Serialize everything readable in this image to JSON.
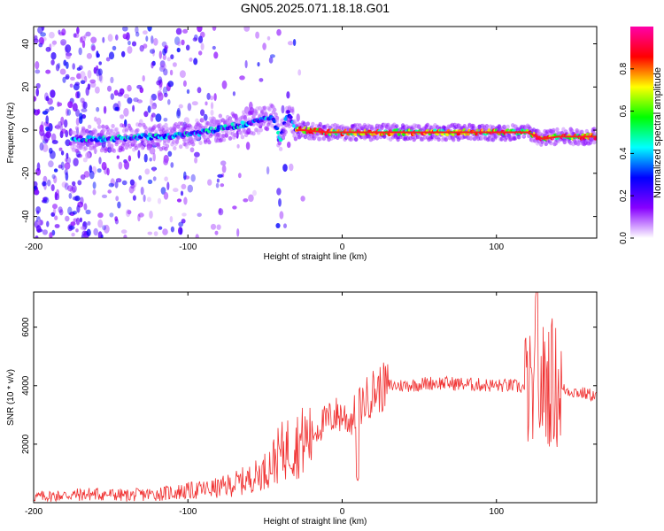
{
  "title": "GN05.2025.071.18.18.G01",
  "colors": {
    "trace": "#f03030",
    "frame": "#000000",
    "ridge": "#ff1f1f"
  },
  "chart_data": [
    {
      "type": "heatmap",
      "title": "GN05.2025.071.18.18.G01",
      "xlabel": "Height of straight line (km)",
      "ylabel": "Frequency (Hz)",
      "xlim": [
        -200,
        165
      ],
      "ylim": [
        -50,
        48
      ],
      "xticks": [
        -200,
        -100,
        0,
        100
      ],
      "yticks": [
        -40,
        -20,
        0,
        20,
        40
      ],
      "xtick_labels": [
        "-200",
        "-100",
        "0",
        "100"
      ],
      "ytick_labels": [
        "-40",
        "-20",
        "0",
        "20",
        "40"
      ],
      "colorbar": {
        "label": "Normalized spectral amplitude",
        "range": [
          0,
          1
        ],
        "ticks": [
          0.0,
          0.2,
          0.4,
          0.6,
          0.8
        ],
        "tick_labels": [
          "0.0",
          "0.2",
          "0.4",
          "0.6",
          "0.8"
        ],
        "colormap": [
          "#ffffff",
          "#8800ff",
          "#0000ff",
          "#00ffff",
          "#00ff00",
          "#ffff00",
          "#ff0000",
          "#ff00aa"
        ]
      },
      "ridge": {
        "x": [
          -170,
          -150,
          -130,
          -110,
          -90,
          -70,
          -55,
          -45,
          -40,
          -35,
          -30,
          -25,
          -10,
          0,
          20,
          40,
          60,
          80,
          100,
          120,
          130,
          140,
          165
        ],
        "y": [
          -4,
          -4,
          -3,
          -3,
          -1,
          2,
          4,
          6,
          -4,
          8,
          0,
          0,
          -1,
          -1,
          -1,
          -1,
          -1,
          -1,
          -1,
          -1,
          -4,
          -3,
          -3
        ]
      }
    },
    {
      "type": "line",
      "xlabel": "Height of straight line (km)",
      "ylabel": "SNR (10 * v/v)",
      "xlim": [
        -200,
        165
      ],
      "ylim": [
        0,
        7200
      ],
      "xticks": [
        -200,
        -100,
        0,
        100
      ],
      "yticks": [
        2000,
        4000,
        6000
      ],
      "xtick_labels": [
        "-200",
        "-100",
        "0",
        "100"
      ],
      "ytick_labels": [
        "2000",
        "4000",
        "6000"
      ],
      "series": [
        {
          "name": "SNR",
          "x": [
            -200,
            -180,
            -160,
            -140,
            -120,
            -100,
            -80,
            -70,
            -60,
            -50,
            -45,
            -40,
            -35,
            -30,
            -25,
            -20,
            -15,
            -10,
            -5,
            0,
            5,
            10,
            15,
            20,
            30,
            40,
            60,
            80,
            100,
            110,
            120,
            125,
            130,
            135,
            140,
            150,
            165
          ],
          "values": [
            200,
            250,
            300,
            250,
            300,
            400,
            500,
            650,
            800,
            1100,
            1400,
            1700,
            1900,
            2000,
            2100,
            2300,
            2600,
            2800,
            3000,
            3000,
            2800,
            3200,
            3500,
            3800,
            4000,
            4000,
            4100,
            4050,
            4000,
            4000,
            3900,
            3500,
            4000,
            4200,
            3900,
            3800,
            3650
          ]
        }
      ]
    }
  ]
}
